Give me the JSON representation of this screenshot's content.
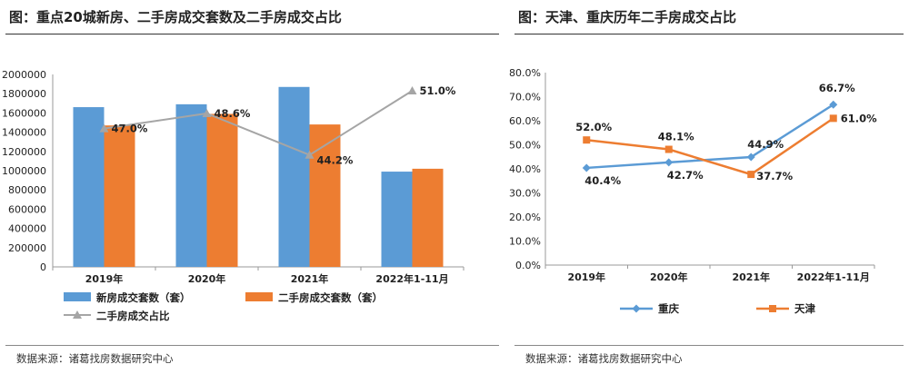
{
  "left": {
    "title": "图：重点20城新房、二手房成交套数及二手房成交占比",
    "source": "数据来源：诸葛找房数据研究中心"
  },
  "right": {
    "title": "图：天津、重庆历年二手房成交占比",
    "source": "数据来源：诸葛找房数据研究中心"
  },
  "colors": {
    "blue": "#5b9bd5",
    "orange": "#ed7d31",
    "gray": "#a5a5a5",
    "axis": "#999999"
  },
  "chart_data": [
    {
      "type": "bar",
      "categories": [
        "2019年",
        "2020年",
        "2021年",
        "2022年1-11月"
      ],
      "ylim": [
        0,
        2000000
      ],
      "yticks": [
        "0",
        "200000",
        "400000",
        "600000",
        "800000",
        "1000000",
        "1200000",
        "1400000",
        "1600000",
        "1800000",
        "2000000"
      ],
      "series": [
        {
          "name": "新房成交套数（套）",
          "kind": "bar",
          "color": "#5b9bd5",
          "values": [
            1660000,
            1690000,
            1870000,
            990000
          ]
        },
        {
          "name": "二手房成交套数（套）",
          "kind": "bar",
          "color": "#ed7d31",
          "values": [
            1470000,
            1590000,
            1480000,
            1020000
          ]
        },
        {
          "name": "二手房成交占比",
          "kind": "line",
          "color": "#a5a5a5",
          "values": [
            47.0,
            48.6,
            44.2,
            51.0
          ],
          "labels": [
            "47.0%",
            "48.6%",
            "44.2%",
            "51.0%"
          ]
        }
      ]
    },
    {
      "type": "line",
      "categories": [
        "2019年",
        "2020年",
        "2021年",
        "2022年1-11月"
      ],
      "ylim": [
        0,
        80
      ],
      "yticks": [
        "0.0%",
        "10.0%",
        "20.0%",
        "30.0%",
        "40.0%",
        "50.0%",
        "60.0%",
        "70.0%",
        "80.0%"
      ],
      "series": [
        {
          "name": "重庆",
          "color": "#5b9bd5",
          "values": [
            40.4,
            42.7,
            44.9,
            66.7
          ],
          "labels": [
            "40.4%",
            "42.7%",
            "44.9%",
            "66.7%"
          ]
        },
        {
          "name": "天津",
          "color": "#ed7d31",
          "values": [
            52.0,
            48.1,
            37.7,
            61.0
          ],
          "labels": [
            "52.0%",
            "48.1%",
            "37.7%",
            "61.0%"
          ]
        }
      ]
    }
  ]
}
